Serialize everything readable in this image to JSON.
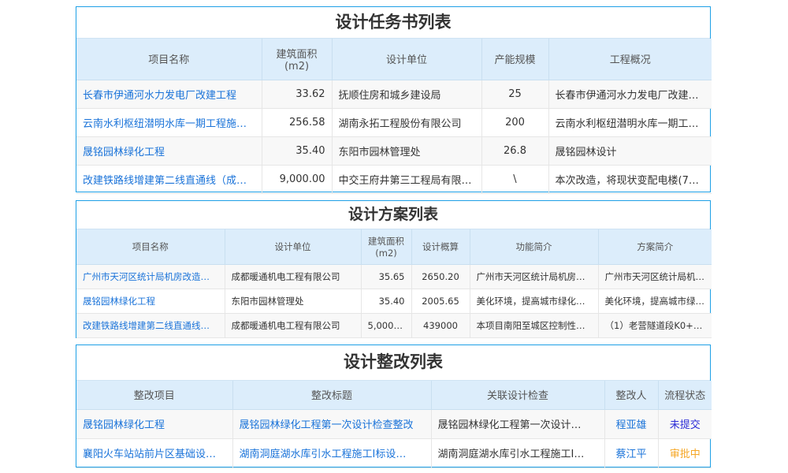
{
  "tables": [
    {
      "title": "设计任务书列表",
      "columns": [
        {
          "label": "项目名称",
          "align": "link"
        },
        {
          "label": "建筑面积\n(m2)",
          "align": "r"
        },
        {
          "label": "设计单位",
          "align": ""
        },
        {
          "label": "产能规模",
          "align": "c"
        },
        {
          "label": "工程概况",
          "align": ""
        }
      ],
      "rows": [
        [
          "长春市伊通河水力发电厂改建工程",
          "33.62",
          "抚顺住房和城乡建设局",
          "25",
          "长春市伊通河水力发电厂改建…"
        ],
        [
          "云南水利枢纽潜明水库一期工程施…",
          "256.58",
          "湖南永拓工程股份有限公司",
          "200",
          "云南水利枢纽潜明水库一期工…"
        ],
        [
          "晟铭园林绿化工程",
          "35.40",
          "东阳市园林管理处",
          "26.8",
          "晟铭园林设计"
        ],
        [
          "改建铁路线增建第二线直通线（成…",
          "9,000.00",
          "中交王府井第三工程局有限…",
          "\\",
          "本次改造，将现状变配电楼(7#…"
        ]
      ]
    },
    {
      "title": "设计方案列表",
      "columns": [
        {
          "label": "项目名称",
          "align": "link"
        },
        {
          "label": "设计单位",
          "align": ""
        },
        {
          "label": "建筑面积\n(m2)",
          "align": "r"
        },
        {
          "label": "设计概算",
          "align": "c"
        },
        {
          "label": "功能简介",
          "align": ""
        },
        {
          "label": "方案简介",
          "align": ""
        }
      ],
      "rows": [
        [
          "广州市天河区统计局机房改造…",
          "成都暖通机电工程有限公司",
          "35.65",
          "2650.20",
          "广州市天河区统计局机房…",
          "广州市天河区统计局机房…"
        ],
        [
          "晟铭园林绿化工程",
          "东阳市园林管理处",
          "35.40",
          "2005.65",
          "美化环境，提高城市绿化…",
          "美化环境，提高城市绿化…"
        ],
        [
          "改建铁路线增建第二线直通线…",
          "成都暖通机电工程有限公司",
          "5,000.00",
          "439000",
          "本项目南阳至城区控制性…",
          "（1）老营隧道段K0+000…"
        ]
      ]
    },
    {
      "title": "设计整改列表",
      "columns": [
        {
          "label": "整改项目",
          "align": "link"
        },
        {
          "label": "整改标题",
          "align": "link"
        },
        {
          "label": "关联设计检查",
          "align": ""
        },
        {
          "label": "整改人",
          "align": "link c"
        },
        {
          "label": "流程状态",
          "align": "c status"
        }
      ],
      "rows": [
        [
          "晟铭园林绿化工程",
          "晟铭园林绿化工程第一次设计检查整改",
          "晟铭园林绿化工程第一次设计…",
          "程亚雄",
          "未提交"
        ],
        [
          "襄阳火车站站前片区基础设…",
          "湖南洞庭湖水库引水工程施工I标设…",
          "湖南洞庭湖水库引水工程施工I…",
          "蔡江平",
          "审批中"
        ]
      ]
    }
  ],
  "status_colors": {
    "未提交": "#2b2bd6",
    "审批中": "#f5a623"
  }
}
